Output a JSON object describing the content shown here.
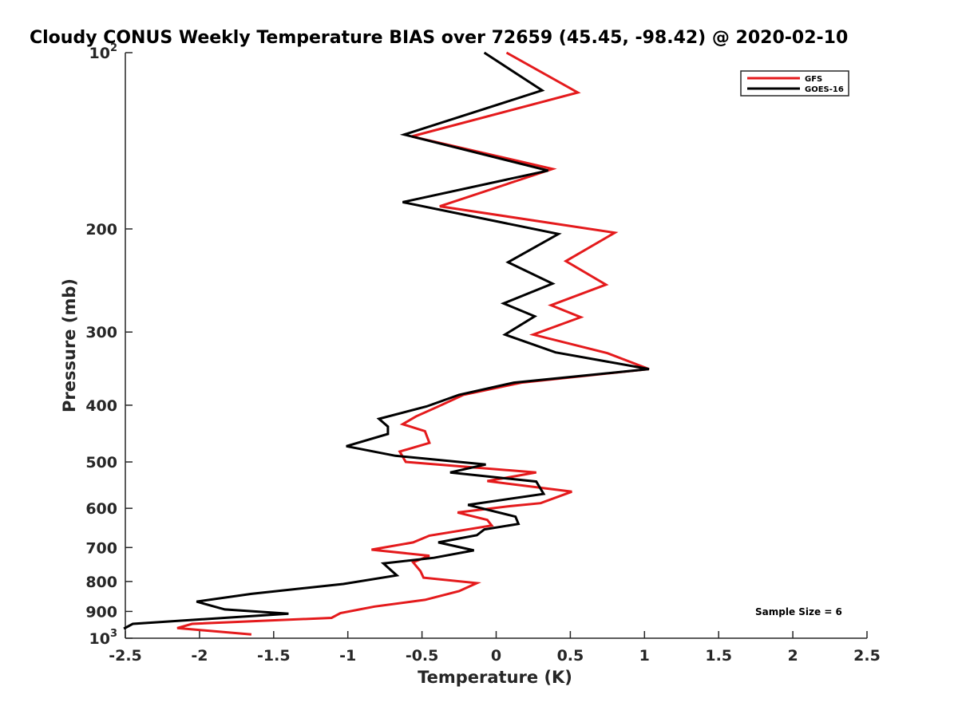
{
  "chart_data": {
    "type": "line",
    "title": "Cloudy CONUS Weekly Temperature BIAS over 72659 (45.45, -98.42) @ 2020-02-10",
    "xlabel": "Temperature (K)",
    "ylabel": "Pressure (mb)",
    "xlim": [
      -2.5,
      2.5
    ],
    "ylim": [
      100,
      1000
    ],
    "yscale": "log",
    "yreversed": true,
    "x_ticks": [
      "-2.5",
      "-2",
      "-1.5",
      "-1",
      "-0.5",
      "0",
      "0.5",
      "1",
      "1.5",
      "2",
      "2.5"
    ],
    "y_ticks": [
      {
        "value": 100,
        "base": "10",
        "exp": "2"
      },
      {
        "value": 200,
        "label": "200"
      },
      {
        "value": 300,
        "label": "300"
      },
      {
        "value": 400,
        "label": "400"
      },
      {
        "value": 500,
        "label": "500"
      },
      {
        "value": 600,
        "label": "600"
      },
      {
        "value": 700,
        "label": "700"
      },
      {
        "value": 800,
        "label": "800"
      },
      {
        "value": 900,
        "label": "900"
      },
      {
        "value": 1000,
        "base": "10",
        "exp": "3"
      }
    ],
    "grid": false,
    "legend_position": "top-right",
    "annotation": "Sample Size = 6",
    "series": [
      {
        "name": "GFS",
        "color": "#e41a1c",
        "points": [
          [
            0.07,
            100
          ],
          [
            0.55,
            117
          ],
          [
            -0.57,
            139
          ],
          [
            0.38,
            158
          ],
          [
            -0.38,
            183
          ],
          [
            0.8,
            203
          ],
          [
            0.47,
            227
          ],
          [
            0.74,
            249
          ],
          [
            0.37,
            270
          ],
          [
            0.57,
            283
          ],
          [
            0.25,
            303
          ],
          [
            0.75,
            326
          ],
          [
            1.03,
            347
          ],
          [
            0.17,
            366
          ],
          [
            -0.22,
            384
          ],
          [
            -0.4,
            403
          ],
          [
            -0.54,
            418
          ],
          [
            -0.63,
            431
          ],
          [
            -0.48,
            443
          ],
          [
            -0.45,
            464
          ],
          [
            -0.65,
            480
          ],
          [
            -0.61,
            500
          ],
          [
            0.27,
            521
          ],
          [
            -0.06,
            539
          ],
          [
            0.51,
            562
          ],
          [
            0.3,
            588
          ],
          [
            0.09,
            595
          ],
          [
            -0.26,
            610
          ],
          [
            -0.06,
            628
          ],
          [
            -0.03,
            642
          ],
          [
            -0.45,
            668
          ],
          [
            -0.56,
            686
          ],
          [
            -0.84,
            706
          ],
          [
            -0.45,
            723
          ],
          [
            -0.56,
            742
          ],
          [
            -0.51,
            768
          ],
          [
            -0.49,
            788
          ],
          [
            -0.13,
            805
          ],
          [
            -0.25,
            831
          ],
          [
            -0.48,
            860
          ],
          [
            -0.82,
            883
          ],
          [
            -1.05,
            906
          ],
          [
            -1.11,
            923
          ],
          [
            -2.05,
            945
          ],
          [
            -2.15,
            961
          ],
          [
            -1.65,
            985
          ]
        ]
      },
      {
        "name": "GOES-16",
        "color": "#000000",
        "points": [
          [
            -0.08,
            100
          ],
          [
            0.31,
            116
          ],
          [
            -0.62,
            138
          ],
          [
            0.35,
            159
          ],
          [
            -0.63,
            180
          ],
          [
            0.42,
            204
          ],
          [
            0.08,
            228
          ],
          [
            0.38,
            248
          ],
          [
            0.05,
            268
          ],
          [
            0.26,
            282
          ],
          [
            0.06,
            303
          ],
          [
            0.4,
            325
          ],
          [
            1.03,
            347
          ],
          [
            0.12,
            366
          ],
          [
            -0.25,
            384
          ],
          [
            -0.47,
            402
          ],
          [
            -0.79,
            422
          ],
          [
            -0.73,
            435
          ],
          [
            -0.73,
            448
          ],
          [
            -1.01,
            470
          ],
          [
            -0.68,
            488
          ],
          [
            -0.07,
            505
          ],
          [
            -0.31,
            521
          ],
          [
            0.27,
            540
          ],
          [
            0.32,
            567
          ],
          [
            -0.19,
            592
          ],
          [
            0.13,
            620
          ],
          [
            0.15,
            638
          ],
          [
            -0.08,
            652
          ],
          [
            -0.13,
            667
          ],
          [
            -0.39,
            686
          ],
          [
            -0.15,
            708
          ],
          [
            -0.42,
            729
          ],
          [
            -0.76,
            745
          ],
          [
            -0.71,
            765
          ],
          [
            -0.67,
            781
          ],
          [
            -1.03,
            808
          ],
          [
            -1.65,
            840
          ],
          [
            -2.02,
            866
          ],
          [
            -1.83,
            893
          ],
          [
            -1.4,
            908
          ],
          [
            -2.45,
            945
          ],
          [
            -2.51,
            963
          ]
        ]
      }
    ]
  }
}
